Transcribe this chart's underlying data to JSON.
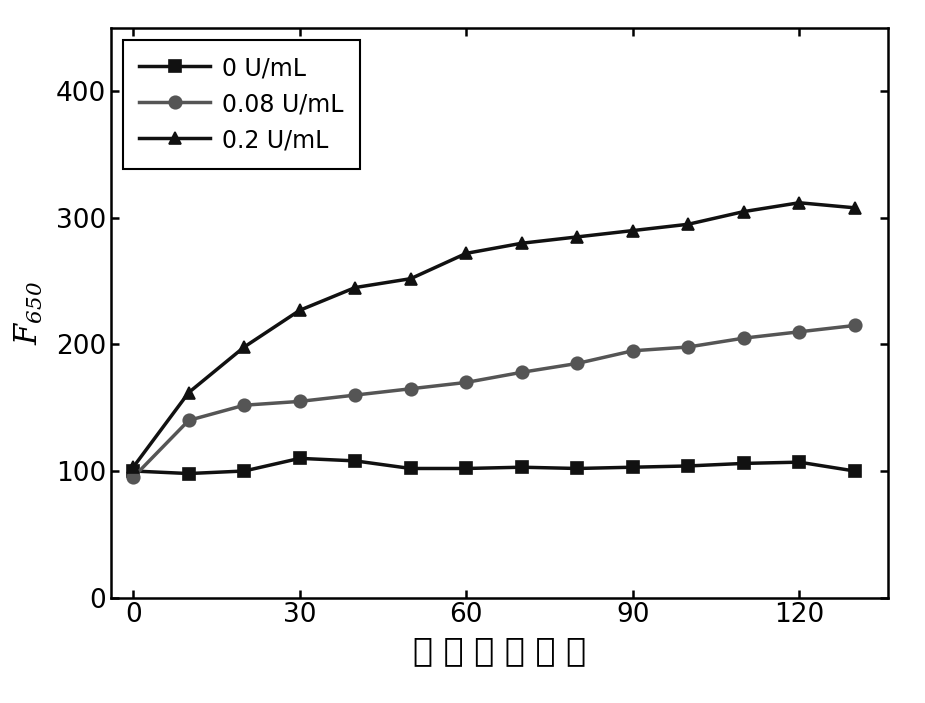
{
  "x_values": [
    0,
    10,
    20,
    30,
    40,
    50,
    60,
    70,
    80,
    90,
    100,
    110,
    120,
    130
  ],
  "series": [
    {
      "label": "0 U/mL",
      "color": "#111111",
      "linewidth": 2.5,
      "marker": "s",
      "markersize": 8,
      "markerfacecolor": "#111111",
      "y": [
        100,
        98,
        100,
        110,
        108,
        102,
        102,
        103,
        102,
        103,
        104,
        106,
        107,
        100
      ]
    },
    {
      "label": "0.08 U/mL",
      "color": "#555555",
      "linewidth": 2.5,
      "marker": "o",
      "markersize": 9,
      "markerfacecolor": "#555555",
      "y": [
        95,
        140,
        152,
        155,
        160,
        165,
        170,
        178,
        185,
        195,
        198,
        205,
        210,
        215
      ]
    },
    {
      "label": "0.2 U/mL",
      "color": "#111111",
      "linewidth": 2.5,
      "marker": "^",
      "markersize": 9,
      "markerfacecolor": "#111111",
      "y": [
        103,
        162,
        198,
        227,
        245,
        252,
        272,
        280,
        285,
        290,
        295,
        305,
        312,
        308
      ]
    }
  ],
  "xlabel": "时间（分钟）",
  "xlabel_display": "时 间 （ 分 钟 ）",
  "ylabel": "F",
  "ylabel_sub": "650",
  "xlim": [
    -4,
    136
  ],
  "ylim": [
    0,
    450
  ],
  "xticks": [
    0,
    30,
    60,
    90,
    120
  ],
  "yticks": [
    0,
    100,
    200,
    300,
    400
  ],
  "xlabel_fontsize": 24,
  "ylabel_fontsize": 22,
  "tick_fontsize": 19,
  "legend_fontsize": 17,
  "background_color": "#ffffff",
  "figure_size": [
    9.25,
    7.03
  ],
  "dpi": 100
}
